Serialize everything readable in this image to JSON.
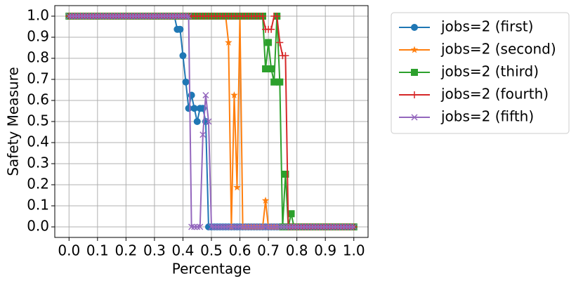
{
  "chart_data": {
    "type": "line",
    "x_label": "Percentage",
    "y_label": "Safety Measure",
    "x": [
      0,
      0.01,
      0.02,
      0.03,
      0.04,
      0.05,
      0.06,
      0.07,
      0.08,
      0.09,
      0.1,
      0.11,
      0.12,
      0.13,
      0.14,
      0.15,
      0.16,
      0.17,
      0.18,
      0.19,
      0.2,
      0.21,
      0.22,
      0.23,
      0.24,
      0.25,
      0.26,
      0.27,
      0.28,
      0.29,
      0.3,
      0.31,
      0.32,
      0.33,
      0.34,
      0.35,
      0.36,
      0.37,
      0.38,
      0.39,
      0.4,
      0.41,
      0.42,
      0.43,
      0.44,
      0.45,
      0.46,
      0.47,
      0.48,
      0.49,
      0.5,
      0.51,
      0.52,
      0.53,
      0.54,
      0.55,
      0.56,
      0.57,
      0.58,
      0.59,
      0.6,
      0.61,
      0.62,
      0.63,
      0.64,
      0.65,
      0.66,
      0.67,
      0.68,
      0.69,
      0.7,
      0.71,
      0.72,
      0.73,
      0.74,
      0.75,
      0.76,
      0.77,
      0.78,
      0.79,
      0.8,
      0.81,
      0.82,
      0.83,
      0.84,
      0.85,
      0.86,
      0.87,
      0.88,
      0.89,
      0.9,
      0.91,
      0.92,
      0.93,
      0.94,
      0.95,
      0.96,
      0.97,
      0.98,
      0.99,
      1
    ],
    "series": [
      {
        "name": "jobs=2 (first)",
        "color": "#1f77b4",
        "marker": "circle",
        "values": [
          1,
          1,
          1,
          1,
          1,
          1,
          1,
          1,
          1,
          1,
          1,
          1,
          1,
          1,
          1,
          1,
          1,
          1,
          1,
          1,
          1,
          1,
          1,
          1,
          1,
          1,
          1,
          1,
          1,
          1,
          1,
          1,
          1,
          1,
          1,
          1,
          1,
          1,
          0.9375,
          0.9375,
          0.8125,
          0.6875,
          0.5625,
          0.625,
          0.5625,
          0.5,
          0.5625,
          0.5625,
          0.5,
          0,
          0,
          0,
          0,
          0,
          0,
          0,
          0,
          0,
          0,
          0,
          0,
          0,
          0,
          0,
          0,
          0,
          0,
          0,
          0,
          0,
          0,
          0,
          0,
          0,
          0,
          0,
          0,
          0,
          0,
          0,
          0,
          0,
          0,
          0,
          0,
          0,
          0,
          0,
          0,
          0,
          0,
          0,
          0,
          0,
          0,
          0,
          0,
          0,
          0,
          0,
          0
        ]
      },
      {
        "name": "jobs=2 (second)",
        "color": "#ff7f0e",
        "marker": "star",
        "values": [
          1,
          1,
          1,
          1,
          1,
          1,
          1,
          1,
          1,
          1,
          1,
          1,
          1,
          1,
          1,
          1,
          1,
          1,
          1,
          1,
          1,
          1,
          1,
          1,
          1,
          1,
          1,
          1,
          1,
          1,
          1,
          1,
          1,
          1,
          1,
          1,
          1,
          1,
          1,
          1,
          1,
          1,
          1,
          1,
          1,
          1,
          1,
          1,
          1,
          1,
          1,
          1,
          1,
          1,
          1,
          1,
          0.875,
          0,
          0.625,
          0.1875,
          1,
          0,
          0,
          0,
          0,
          0,
          0,
          0,
          0,
          0.125,
          0,
          0,
          0,
          0,
          0,
          0,
          0,
          0,
          0,
          0,
          0,
          0,
          0,
          0,
          0,
          0,
          0,
          0,
          0,
          0,
          0,
          0,
          0,
          0,
          0,
          0,
          0,
          0,
          0,
          0,
          0
        ]
      },
      {
        "name": "jobs=2 (third)",
        "color": "#2ca02c",
        "marker": "square",
        "values": [
          1,
          1,
          1,
          1,
          1,
          1,
          1,
          1,
          1,
          1,
          1,
          1,
          1,
          1,
          1,
          1,
          1,
          1,
          1,
          1,
          1,
          1,
          1,
          1,
          1,
          1,
          1,
          1,
          1,
          1,
          1,
          1,
          1,
          1,
          1,
          1,
          1,
          1,
          1,
          1,
          1,
          1,
          1,
          1,
          1,
          1,
          1,
          1,
          1,
          1,
          1,
          1,
          1,
          1,
          1,
          1,
          1,
          1,
          1,
          1,
          1,
          1,
          1,
          1,
          1,
          1,
          1,
          1,
          1,
          0.75,
          0.875,
          0.75,
          0.6875,
          1,
          0.6875,
          0,
          0.25,
          0,
          0.0625,
          0,
          0,
          0,
          0,
          0,
          0,
          0,
          0,
          0,
          0,
          0,
          0,
          0,
          0,
          0,
          0,
          0,
          0,
          0,
          0,
          0,
          0
        ]
      },
      {
        "name": "jobs=2 (fourth)",
        "color": "#d62728",
        "marker": "plus",
        "values": [
          1,
          1,
          1,
          1,
          1,
          1,
          1,
          1,
          1,
          1,
          1,
          1,
          1,
          1,
          1,
          1,
          1,
          1,
          1,
          1,
          1,
          1,
          1,
          1,
          1,
          1,
          1,
          1,
          1,
          1,
          1,
          1,
          1,
          1,
          1,
          1,
          1,
          1,
          1,
          1,
          1,
          1,
          1,
          1,
          1,
          1,
          1,
          1,
          1,
          1,
          1,
          1,
          1,
          1,
          1,
          1,
          1,
          1,
          1,
          1,
          1,
          1,
          1,
          1,
          1,
          1,
          1,
          1,
          1,
          0.9375,
          0.9375,
          0.9375,
          1,
          1,
          0.875,
          0.8125,
          0.8125,
          0,
          0,
          0,
          0,
          0,
          0,
          0,
          0,
          0,
          0,
          0,
          0,
          0,
          0,
          0,
          0,
          0,
          0,
          0,
          0,
          0,
          0,
          0,
          0
        ]
      },
      {
        "name": "jobs=2 (fifth)",
        "color": "#9467bd",
        "marker": "x",
        "values": [
          1,
          1,
          1,
          1,
          1,
          1,
          1,
          1,
          1,
          1,
          1,
          1,
          1,
          1,
          1,
          1,
          1,
          1,
          1,
          1,
          1,
          1,
          1,
          1,
          1,
          1,
          1,
          1,
          1,
          1,
          1,
          1,
          1,
          1,
          1,
          1,
          1,
          1,
          1,
          1,
          1,
          1,
          1,
          0,
          0,
          0,
          0,
          0.4375,
          0.625,
          0.5,
          0,
          0,
          0,
          0,
          0,
          0,
          0,
          0,
          0,
          0,
          0,
          0,
          0,
          0,
          0,
          0,
          0,
          0,
          0,
          0,
          0,
          0,
          0,
          0,
          0,
          0,
          0,
          0,
          0,
          0,
          0,
          0,
          0,
          0,
          0,
          0,
          0,
          0,
          0,
          0,
          0,
          0,
          0,
          0,
          0,
          0,
          0,
          0,
          0,
          0,
          0
        ]
      }
    ],
    "xlim": [
      -0.05,
      1.05
    ],
    "ylim": [
      -0.05,
      1.05
    ],
    "xticks": [
      {
        "value": 0,
        "label": "0.0"
      },
      0.1,
      0.2,
      0.3,
      0.4,
      0.5,
      0.6,
      0.7,
      0.8,
      0.9,
      {
        "value": 1,
        "label": "1.0"
      }
    ],
    "yticks": [
      {
        "value": 0,
        "label": "0.0"
      },
      0.1,
      0.2,
      0.3,
      0.4,
      0.5,
      0.6,
      0.7,
      0.8,
      0.9,
      {
        "value": 1,
        "label": "1.0"
      }
    ],
    "grid": true,
    "legend": "outside-right"
  }
}
